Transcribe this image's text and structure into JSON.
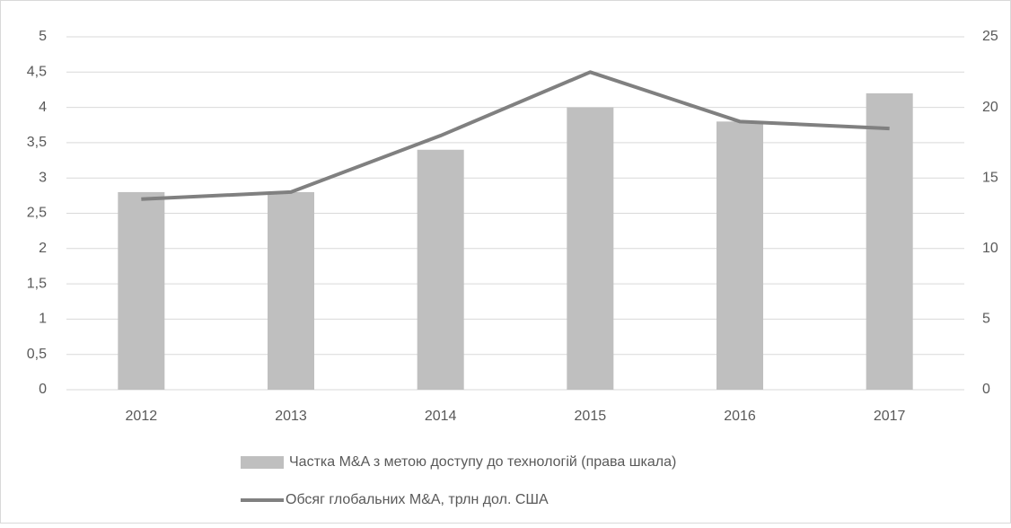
{
  "chart_data": {
    "type": "bar",
    "categories": [
      "2012",
      "2013",
      "2014",
      "2015",
      "2016",
      "2017"
    ],
    "series": [
      {
        "name": "Частка M&A з метою доступу до технологій (права шкала)",
        "type": "bar",
        "axis": "y2",
        "color": "#bfbfbf",
        "values": [
          14,
          14,
          17,
          20,
          19,
          21
        ]
      },
      {
        "name": "Обсяг глобальних M&A, трлн дол. США",
        "type": "line",
        "axis": "y",
        "color": "#808080",
        "values": [
          2.7,
          2.8,
          3.6,
          4.5,
          3.8,
          3.7
        ]
      }
    ],
    "ylim": [
      0,
      5
    ],
    "yticks": [
      0,
      {
        "value": 0.5,
        "label": "0,5"
      },
      1,
      {
        "value": 1.5,
        "label": "1,5"
      },
      2,
      {
        "value": 2.5,
        "label": "2,5"
      },
      3,
      {
        "value": 3.5,
        "label": "3,5"
      },
      4,
      {
        "value": 4.5,
        "label": "4,5"
      },
      5
    ],
    "y2lim": [
      0,
      25
    ],
    "y2ticks": [
      0,
      5,
      10,
      15,
      20,
      25
    ],
    "grid": true,
    "legend": "bottom"
  }
}
